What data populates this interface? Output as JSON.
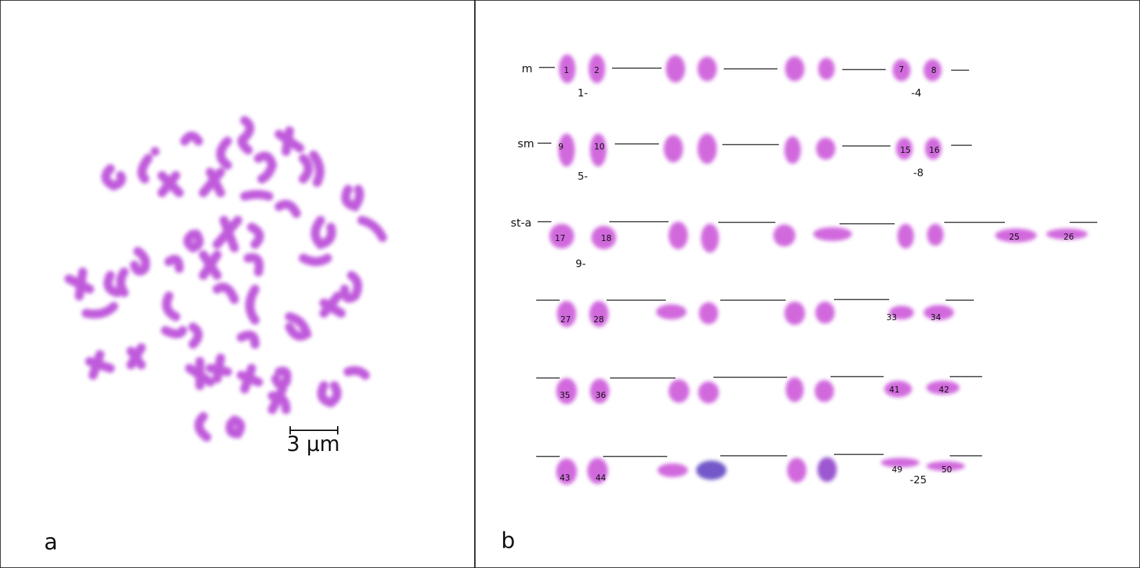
{
  "panels": {
    "a": "a",
    "b": "b"
  },
  "scale_bar": {
    "label": "3 μm"
  },
  "karyotype": {
    "rows": [
      {
        "label": "m",
        "numbers": [
          "1",
          "2",
          "7",
          "8"
        ],
        "ranges": [
          "1-",
          "-4"
        ]
      },
      {
        "label": "sm",
        "numbers": [
          "9",
          "10",
          "15",
          "16"
        ],
        "ranges": [
          "5-",
          "-8"
        ]
      },
      {
        "label": "st-a",
        "numbers": [
          "17",
          "18",
          "25",
          "26"
        ],
        "ranges": [
          "9-"
        ]
      },
      {
        "label": "",
        "numbers": [
          "27",
          "28",
          "33",
          "34"
        ],
        "ranges": []
      },
      {
        "label": "",
        "numbers": [
          "35",
          "36",
          "41",
          "42"
        ],
        "ranges": []
      },
      {
        "label": "",
        "numbers": [
          "43",
          "44",
          "49",
          "50"
        ],
        "ranges": [
          "-25"
        ]
      }
    ]
  },
  "colors": {
    "stain": "#c93fd8",
    "stain_dark": "#7a2fc8",
    "line": "#333333"
  }
}
